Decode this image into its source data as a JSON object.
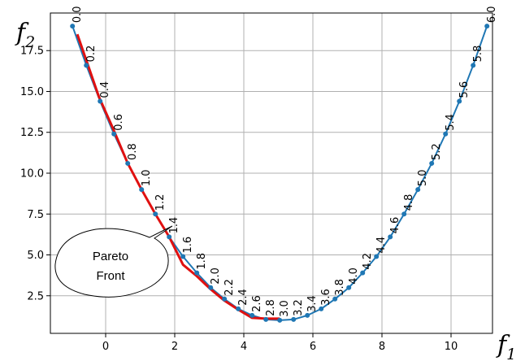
{
  "chart_data": {
    "type": "line",
    "xlabel_main": "f",
    "xlabel_sub": "1",
    "ylabel_main": "f",
    "ylabel_sub": "2",
    "xlim": [
      -1.6,
      11.2
    ],
    "ylim": [
      0.2,
      19.8
    ],
    "xticks": [
      0,
      2,
      4,
      6,
      8,
      10
    ],
    "xtick_labels": [
      "0",
      "2",
      "4",
      "6",
      "8",
      "10"
    ],
    "yticks": [
      2.5,
      5.0,
      7.5,
      10.0,
      12.5,
      15.0,
      17.5
    ],
    "ytick_labels": [
      "2.5",
      "5.0",
      "7.5",
      "10.0",
      "12.5",
      "15.0",
      "17.5"
    ],
    "grid": true,
    "series": [
      {
        "color": "#1f77b4",
        "marker": "circle",
        "labels": [
          "0.0",
          "0.2",
          "0.4",
          "0.6",
          "0.8",
          "1.0",
          "1.2",
          "1.4",
          "1.6",
          "1.8",
          "2.0",
          "2.2",
          "2.4",
          "2.6",
          "2.8",
          "3.0",
          "3.2",
          "3.4",
          "3.6",
          "3.8",
          "4.0",
          "4.2",
          "4.4",
          "4.6",
          "4.8",
          "5.0",
          "5.2",
          "5.4",
          "5.6",
          "5.8",
          "6.0"
        ],
        "x": [
          -0.96,
          -0.56,
          -0.16,
          0.24,
          0.64,
          1.04,
          1.44,
          1.84,
          2.24,
          2.64,
          3.04,
          3.44,
          3.84,
          4.24,
          4.64,
          5.04,
          5.44,
          5.84,
          6.24,
          6.64,
          7.04,
          7.44,
          7.84,
          8.24,
          8.64,
          9.04,
          9.44,
          9.84,
          10.24,
          10.64,
          11.04
        ],
        "y": [
          19.0,
          16.6,
          14.4,
          12.4,
          10.6,
          9.0,
          7.5,
          6.1,
          4.9,
          3.9,
          3.0,
          2.3,
          1.7,
          1.3,
          1.05,
          1.0,
          1.05,
          1.3,
          1.7,
          2.3,
          3.0,
          3.9,
          4.9,
          6.1,
          7.5,
          9.0,
          10.6,
          12.4,
          14.4,
          16.6,
          19.0
        ]
      }
    ],
    "front": {
      "color": "#e01010",
      "x": [
        -0.82,
        -0.2,
        0.2,
        0.64,
        1.04,
        1.44,
        1.84,
        2.24,
        2.64,
        3.04,
        3.44,
        3.84,
        4.24,
        4.64,
        5.04
      ],
      "y": [
        18.5,
        14.7,
        12.8,
        10.6,
        9.0,
        7.5,
        6.1,
        4.4,
        3.7,
        2.9,
        2.2,
        1.65,
        1.15,
        1.1,
        1.1
      ]
    },
    "annotation": {
      "line1": "Pareto",
      "line2": "Front"
    }
  }
}
